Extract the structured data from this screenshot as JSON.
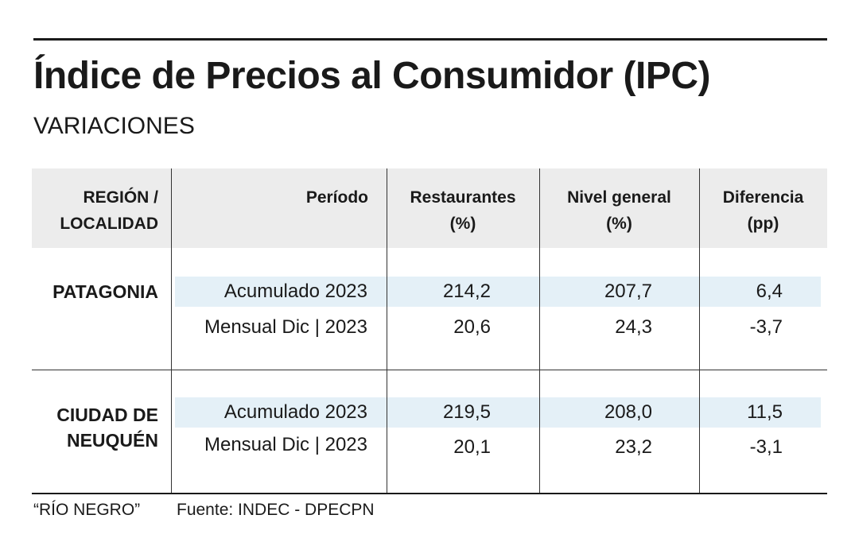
{
  "title": "Índice de Precios al Consumidor (IPC)",
  "subtitle": "VARIACIONES",
  "columns": {
    "region": [
      "REGIÓN /",
      "LOCALIDAD"
    ],
    "periodo": [
      "Período"
    ],
    "restaurantes": [
      "Restaurantes",
      "(%)"
    ],
    "nivel_general": [
      "Nivel general",
      "(%)"
    ],
    "diferencia": [
      "Diferencia",
      "(pp)"
    ]
  },
  "groups": [
    {
      "region": [
        "PATAGONIA"
      ],
      "rows": [
        {
          "periodo": "Acumulado 2023",
          "restaurantes": "214,2",
          "nivel_general": "207,7",
          "diferencia": "6,4",
          "highlight": true
        },
        {
          "periodo": "Mensual Dic | 2023",
          "restaurantes": "20,6",
          "nivel_general": "24,3",
          "diferencia": "-3,7",
          "highlight": false
        }
      ]
    },
    {
      "region": [
        "CIUDAD DE",
        "NEUQUÉN"
      ],
      "rows": [
        {
          "periodo": "Acumulado 2023",
          "restaurantes": "219,5",
          "nivel_general": "208,0",
          "diferencia": "11,5",
          "highlight": true
        },
        {
          "periodo": "Mensual Dic | 2023",
          "restaurantes": "20,1",
          "nivel_general": "23,2",
          "diferencia": "-3,1",
          "highlight": false
        }
      ]
    }
  ],
  "footer": {
    "credit": "“RÍO NEGRO”",
    "source": "Fuente: INDEC - DPECPN"
  },
  "colors": {
    "header_band": "#ececec",
    "row_highlight": "#e4f0f7",
    "text": "#1a1a1a"
  }
}
